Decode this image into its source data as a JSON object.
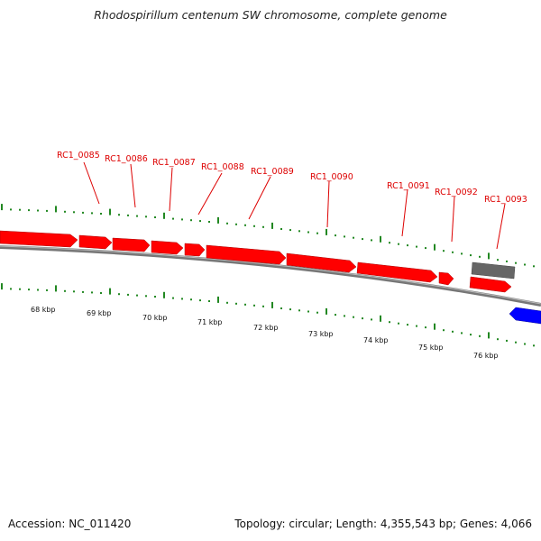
{
  "title": "Rhodospirillum centenum SW chromosome, complete genome",
  "footer": {
    "accession": "Accession: NC_011420",
    "summary": "Topology: circular; Length: 4,355,543 bp; Genes: 4,066"
  },
  "colors": {
    "forward_gene": "#ff0000",
    "reverse_gene": "#0000ff",
    "other_feature": "#666666",
    "backbone": "#888888",
    "ticks": "#228822",
    "gene_label": "#dd0000"
  },
  "scale_labels": [
    "68 kbp",
    "69 kbp",
    "70 kbp",
    "71 kbp",
    "72 kbp",
    "73 kbp",
    "74 kbp",
    "75 kbp",
    "76 kbp"
  ],
  "gene_labels": [
    "RC1_0085",
    "RC1_0086",
    "RC1_0087",
    "RC1_0088",
    "RC1_0089",
    "RC1_0090",
    "RC1_0091",
    "RC1_0092",
    "RC1_0093"
  ]
}
